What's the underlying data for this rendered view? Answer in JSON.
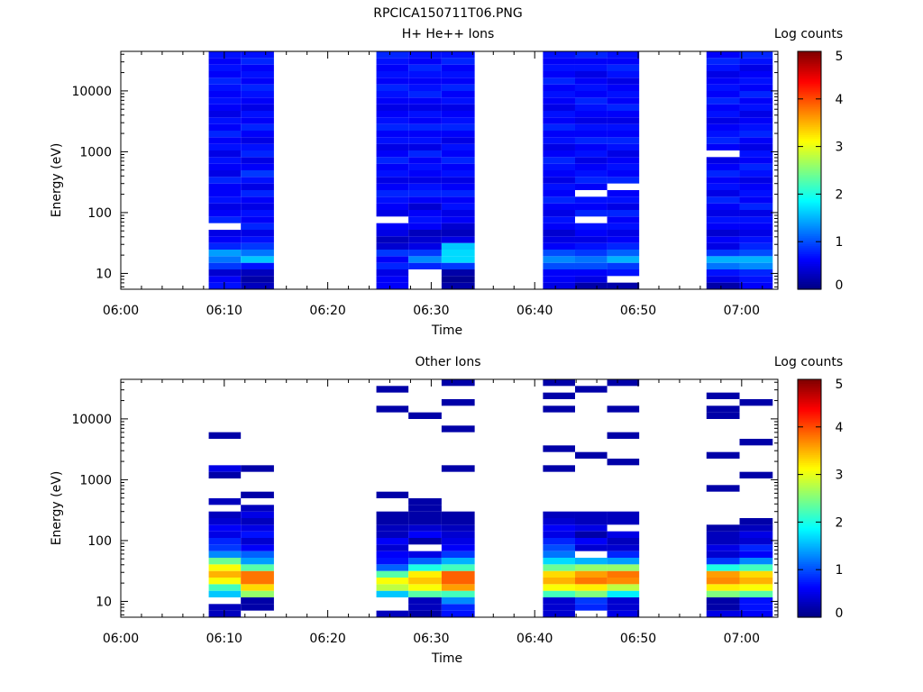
{
  "figure_title": "RPCICA150711T06.PNG",
  "chart_data": [
    {
      "type": "heatmap",
      "title": "H+ He++ Ions",
      "xlabel": "Time",
      "ylabel": "Energy (eV)",
      "colorbar_label": "Log counts",
      "colorbar_ticks": [
        "0",
        "1",
        "2",
        "3",
        "4",
        "5"
      ],
      "colorbar_range": [
        0,
        5
      ],
      "x_ticks": [
        "06:00",
        "06:10",
        "06:20",
        "06:30",
        "06:40",
        "06:50",
        "07:00"
      ],
      "y_ticks": [
        "10",
        "100",
        "1000",
        "10000"
      ],
      "x_range_minutes": [
        0,
        63.5
      ],
      "y_range_log10": [
        0.74,
        4.65
      ],
      "y_scale": "log",
      "blocks": [
        {
          "start": 8.5,
          "end": 11.6,
          "levels": [
            0.7,
            0.6,
            0.4,
            0.9,
            1.2,
            1.4,
            0.8,
            0.6,
            0.5,
            0.7,
            0.8,
            0.6,
            0.5,
            0.7,
            0.6,
            0.6,
            0.8,
            0.5,
            0.6,
            0.7,
            0.5,
            0.7,
            0.6,
            0.8,
            0.6,
            0.7,
            0.5,
            0.6,
            0.7,
            0.6,
            0.7,
            0.8,
            0.6,
            0.7,
            0.6,
            0.7
          ],
          "gaps": [
            9
          ]
        },
        {
          "start": 11.6,
          "end": 14.8,
          "levels": [
            0.3,
            0.2,
            0.3,
            0.7,
            1.6,
            1.2,
            0.9,
            0.7,
            0.5,
            0.8,
            0.6,
            0.7,
            0.5,
            0.6,
            0.8,
            0.5,
            0.7,
            0.9,
            0.6,
            0.5,
            0.8,
            0.7,
            0.5,
            0.6,
            0.8,
            0.6,
            0.7,
            0.5,
            0.6,
            0.7,
            0.8,
            0.6,
            0.7,
            0.6,
            0.8,
            0.7
          ],
          "gaps": []
        },
        {
          "start": 24.7,
          "end": 27.8,
          "levels": [
            0.6,
            0.6,
            0.5,
            0.8,
            0.6,
            0.9,
            0.4,
            0.3,
            0.5,
            0.6,
            0.7,
            0.5,
            0.6,
            0.7,
            0.8,
            0.6,
            0.5,
            0.7,
            0.6,
            0.8,
            0.6,
            0.5,
            0.7,
            0.6,
            0.8,
            0.7,
            0.6,
            0.5,
            0.6,
            0.7,
            0.8,
            0.6,
            0.7,
            0.6,
            0.7,
            0.8
          ],
          "gaps": [
            10
          ]
        },
        {
          "start": 27.8,
          "end": 31.0,
          "levels": [
            0,
            0,
            0,
            0.8,
            1.3,
            0.9,
            0.5,
            0.4,
            0.3,
            0.6,
            0.7,
            0.6,
            0.4,
            0.6,
            0.8,
            0.7,
            0.5,
            0.6,
            0.7,
            0.6,
            0.8,
            0.5,
            0.7,
            0.6,
            0.8,
            0.6,
            0.7,
            0.5,
            0.6,
            0.8,
            0.7,
            0.6,
            0.7,
            0.8,
            0.6,
            0.7
          ],
          "gaps": [
            0,
            1,
            2
          ]
        },
        {
          "start": 31.0,
          "end": 34.2,
          "levels": [
            0.2,
            0.1,
            0.2,
            0.9,
            1.7,
            1.7,
            1.6,
            0.5,
            0.3,
            0.4,
            0.6,
            0.5,
            0.7,
            0.6,
            0.8,
            0.6,
            0.5,
            0.7,
            0.6,
            0.8,
            0.6,
            0.7,
            0.5,
            0.6,
            0.8,
            0.7,
            0.6,
            0.5,
            0.7,
            0.6,
            0.8,
            0.6,
            0.7,
            0.6,
            0.8,
            0.7
          ],
          "gaps": []
        },
        {
          "start": 40.8,
          "end": 43.9,
          "levels": [
            0.5,
            0.6,
            0.6,
            1.0,
            1.3,
            1.0,
            0.6,
            0.5,
            0.4,
            0.6,
            0.7,
            0.5,
            0.6,
            0.8,
            0.6,
            0.7,
            0.5,
            0.6,
            0.7,
            0.8,
            0.6,
            0.5,
            0.7,
            0.6,
            0.8,
            0.6,
            0.7,
            0.5,
            0.6,
            0.7,
            0.6,
            0.8,
            0.6,
            0.7,
            0.6,
            0.7
          ],
          "gaps": []
        },
        {
          "start": 43.9,
          "end": 47.0,
          "levels": [
            0.2,
            0.5,
            0.6,
            1.0,
            1.2,
            0.9,
            0.7,
            0.5,
            0.6,
            0.7,
            0.5,
            0.8,
            0.6,
            0.7,
            0.5,
            0.6,
            0.8,
            0.7,
            0.6,
            0.5,
            0.7,
            0.6,
            0.8,
            0.6,
            0.7,
            0.5,
            0.6,
            0.7,
            0.8,
            0.6,
            0.7,
            0.6,
            0.5,
            0.7,
            0.6,
            0.8
          ],
          "gaps": [
            10,
            14
          ]
        },
        {
          "start": 47.0,
          "end": 50.1,
          "levels": [
            0.2,
            0,
            0.7,
            0.9,
            1.5,
            1.1,
            0.8,
            0.6,
            0.5,
            0.7,
            0.6,
            0.8,
            0.5,
            0.7,
            0.6,
            0.5,
            0.8,
            0.6,
            0.7,
            0.6,
            0.5,
            0.7,
            0.8,
            0.6,
            0.7,
            0.5,
            0.6,
            0.8,
            0.6,
            0.7,
            0.6,
            0.5,
            0.7,
            0.8,
            0.6,
            0.7
          ],
          "gaps": [
            1,
            15
          ]
        },
        {
          "start": 56.6,
          "end": 59.8,
          "levels": [
            0.2,
            0.5,
            0.7,
            1.2,
            1.5,
            0.9,
            0.5,
            0.6,
            0.4,
            0.6,
            0.7,
            0.5,
            0.6,
            0.8,
            0.5,
            0.7,
            0.6,
            0.8,
            0.6,
            0.5,
            0.7,
            0.6,
            0.8,
            0.7,
            0.6,
            0.5,
            0.7,
            0.6,
            0.8,
            0.6,
            0.7,
            0.6,
            0.5,
            0.7,
            0.8,
            0.6
          ],
          "gaps": [
            20
          ]
        },
        {
          "start": 59.8,
          "end": 63.0,
          "levels": [
            0.6,
            0.7,
            0.8,
            1.3,
            1.5,
            1.0,
            0.8,
            0.7,
            0.5,
            0.6,
            0.7,
            0.5,
            0.8,
            0.6,
            0.7,
            0.6,
            0.5,
            0.7,
            0.8,
            0.6,
            0.7,
            0.5,
            0.6,
            0.8,
            0.7,
            0.6,
            0.5,
            0.7,
            0.6,
            0.8,
            0.6,
            0.7,
            0.6,
            0.5,
            0.7,
            0.8
          ],
          "gaps": []
        }
      ]
    },
    {
      "type": "heatmap",
      "title": "Other Ions",
      "xlabel": "Time",
      "ylabel": "Energy (eV)",
      "colorbar_label": "Log counts",
      "colorbar_ticks": [
        "0",
        "1",
        "2",
        "3",
        "4",
        "5"
      ],
      "colorbar_range": [
        0,
        5
      ],
      "x_ticks": [
        "06:00",
        "06:10",
        "06:20",
        "06:30",
        "06:40",
        "06:50",
        "07:00"
      ],
      "y_ticks": [
        "10",
        "100",
        "1000",
        "10000"
      ],
      "x_range_minutes": [
        0,
        63.5
      ],
      "y_range_log10": [
        0.74,
        4.65
      ],
      "y_scale": "log",
      "blocks": [
        {
          "start": 8.5,
          "end": 11.6,
          "levels": [
            0.3,
            0.3,
            -1,
            1.6,
            2.2,
            3.1,
            3.5,
            3.1,
            2.4,
            1.3,
            0.9,
            0.8,
            0.5,
            0.6,
            0.4,
            0.3,
            -1,
            0.3,
            -1,
            -1,
            -1,
            0.2,
            0.5,
            -1,
            -1,
            -1,
            -1,
            0.2,
            -1,
            -1,
            -1,
            -1,
            -1,
            -1,
            -1,
            -1
          ],
          "gaps": []
        },
        {
          "start": 11.6,
          "end": 14.8,
          "levels": [
            -1,
            0.2,
            0.2,
            2.6,
            3.3,
            3.8,
            3.8,
            2.3,
            1.4,
            1.1,
            0.6,
            0.4,
            0.7,
            0.5,
            0.3,
            0.5,
            0.3,
            -1,
            0.2,
            -1,
            -1,
            -1,
            0.2,
            -1,
            -1,
            -1,
            -1,
            -1,
            -1,
            -1,
            -1,
            -1,
            -1,
            -1,
            -1,
            -1
          ],
          "gaps": []
        },
        {
          "start": 24.7,
          "end": 27.8,
          "levels": [
            0.3,
            -1,
            -1,
            1.6,
            2.8,
            3.1,
            2.3,
            1.1,
            0.7,
            0.6,
            0.4,
            0.6,
            0.3,
            0.3,
            0.2,
            0.2,
            -1,
            -1,
            0.2,
            -1,
            -1,
            -1,
            -1,
            -1,
            -1,
            -1,
            -1,
            -1,
            -1,
            -1,
            -1,
            0.2,
            -1,
            -1,
            0.2,
            -1
          ],
          "gaps": []
        },
        {
          "start": 27.8,
          "end": 31.0,
          "levels": [
            0.2,
            0.3,
            0.3,
            2.3,
            3.1,
            3.4,
            3.2,
            2.0,
            1.1,
            0.5,
            0.3,
            0.2,
            0.6,
            0.4,
            0.2,
            0.2,
            0.2,
            0.2,
            -1,
            -1,
            -1,
            -1,
            -1,
            -1,
            -1,
            -1,
            -1,
            -1,
            -1,
            -1,
            0.2,
            -1,
            -1,
            -1,
            -1,
            -1
          ],
          "gaps": [
            10
          ]
        },
        {
          "start": 31.0,
          "end": 34.2,
          "levels": [
            0.7,
            0.8,
            1.3,
            2.2,
            3.6,
            3.9,
            3.9,
            2.2,
            1.5,
            0.9,
            0.6,
            0.5,
            0.4,
            0.3,
            0.2,
            0.2,
            -1,
            -1,
            -1,
            -1,
            -1,
            -1,
            0.2,
            -1,
            -1,
            -1,
            -1,
            -1,
            0.2,
            -1,
            -1,
            -1,
            0.2,
            -1,
            -1,
            0.2
          ],
          "gaps": []
        },
        {
          "start": 40.8,
          "end": 43.9,
          "levels": [
            0.4,
            0.4,
            0.4,
            2.2,
            3.1,
            3.5,
            3.3,
            2.4,
            1.7,
            1.2,
            1.0,
            0.8,
            0.5,
            0.6,
            0.4,
            0.3,
            -1,
            -1,
            -1,
            -1,
            -1,
            -1,
            0.2,
            -1,
            -1,
            0.2,
            -1,
            -1,
            -1,
            -1,
            -1,
            0.2,
            -1,
            0.2,
            -1,
            0.2
          ],
          "gaps": []
        },
        {
          "start": 43.9,
          "end": 47.0,
          "levels": [
            -1,
            0.8,
            0.9,
            2.5,
            3.2,
            3.8,
            3.6,
            2.6,
            1.5,
            0.9,
            0.4,
            0.6,
            0.2,
            0.5,
            0.3,
            0.3,
            -1,
            -1,
            -1,
            -1,
            -1,
            -1,
            -1,
            -1,
            0.2,
            -1,
            -1,
            -1,
            -1,
            -1,
            -1,
            -1,
            -1,
            -1,
            0.2,
            -1
          ],
          "gaps": [
            9
          ]
        },
        {
          "start": 47.0,
          "end": 50.1,
          "levels": [
            0.5,
            0.4,
            0.4,
            1.8,
            2.8,
            3.7,
            3.8,
            2.6,
            1.4,
            0.8,
            0.4,
            0.3,
            0.5,
            -1,
            0.3,
            0.3,
            -1,
            -1,
            -1,
            -1,
            -1,
            -1,
            -1,
            0.2,
            -1,
            -1,
            -1,
            0.2,
            -1,
            -1,
            -1,
            0.2,
            -1,
            -1,
            -1,
            0.2
          ],
          "gaps": []
        },
        {
          "start": 56.6,
          "end": 59.8,
          "levels": [
            0.5,
            0.2,
            0.2,
            2.5,
            3.2,
            3.7,
            3.6,
            2.0,
            0.9,
            0.4,
            0.5,
            0.3,
            0.3,
            0.2,
            -1,
            -1,
            -1,
            -1,
            -1,
            0.2,
            -1,
            -1,
            -1,
            -1,
            0.2,
            -1,
            -1,
            -1,
            -1,
            -1,
            0.2,
            0.2,
            -1,
            0.2,
            -1,
            -1
          ],
          "gaps": []
        },
        {
          "start": 59.8,
          "end": 63.0,
          "levels": [
            0.6,
            0.7,
            0.7,
            2.3,
            3.1,
            3.5,
            3.3,
            2.2,
            1.3,
            0.6,
            0.8,
            0.4,
            0.5,
            0.3,
            0.2,
            -1,
            -1,
            -1,
            -1,
            -1,
            -1,
            0.2,
            -1,
            -1,
            -1,
            -1,
            0.2,
            -1,
            -1,
            -1,
            -1,
            -1,
            0.2,
            -1,
            -1,
            -1
          ],
          "gaps": []
        }
      ]
    }
  ]
}
